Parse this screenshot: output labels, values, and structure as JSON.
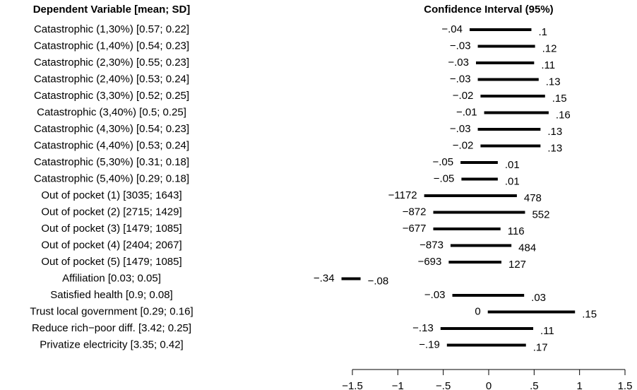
{
  "chart_data": {
    "type": "forest",
    "title": "Confidence Interval (95%)",
    "label_header": "Dependent Variable [mean; SD]",
    "categories": [
      "Catastrophic (1,30%)  [0.57; 0.22]",
      "Catastrophic (1,40%)  [0.54; 0.23]",
      "Catastrophic (2,30%)  [0.55; 0.23]",
      "Catastrophic (2,40%)  [0.53; 0.24]",
      "Catastrophic (3,30%)  [0.52; 0.25]",
      "Catastrophic (3,40%)  [0.5; 0.25]",
      "Catastrophic (4,30%)  [0.54; 0.23]",
      "Catastrophic (4,40%)  [0.53; 0.24]",
      "Catastrophic (5,30%)  [0.31; 0.18]",
      "Catastrophic (5,40%)  [0.29; 0.18]",
      "Out of pocket (1)  [3035; 1643]",
      "Out of pocket (2)  [2715; 1429]",
      "Out of pocket (3)  [1479; 1085]",
      "Out of pocket (4)  [2404; 2067]",
      "Out of pocket (5)  [1479; 1085]",
      "Affiliation  [0.03; 0.05]",
      "Satisfied health  [0.9; 0.08]",
      "Trust local government  [0.29; 0.16]",
      "Reduce rich−poor diff.  [3.42; 0.25]",
      "Privatize electricity  [3.35; 0.42]"
    ],
    "lower": [
      -0.21,
      -0.12,
      -0.14,
      -0.12,
      -0.09,
      -0.05,
      -0.12,
      -0.09,
      -0.31,
      -0.3,
      -0.71,
      -0.61,
      -0.61,
      -0.42,
      -0.44,
      -1.62,
      -0.4,
      -0.01,
      -0.53,
      -0.46
    ],
    "upper": [
      0.47,
      0.51,
      0.5,
      0.55,
      0.62,
      0.66,
      0.57,
      0.57,
      0.1,
      0.1,
      0.31,
      0.4,
      0.13,
      0.25,
      0.14,
      -1.41,
      0.39,
      0.95,
      0.49,
      0.41
    ],
    "lower_labels": [
      "−.04",
      "−.03",
      "−.03",
      "−.03",
      "−.02",
      "−.01",
      "−.03",
      "−.02",
      "−.05",
      "−.05",
      "−1172",
      "−872",
      "−677",
      "−873",
      "−693",
      "−.34",
      "−.03",
      "0",
      "−.13",
      "−.19"
    ],
    "upper_labels": [
      ".1",
      ".12",
      ".11",
      ".13",
      ".15",
      ".16",
      ".13",
      ".13",
      ".01",
      ".01",
      "478",
      "552",
      "116",
      "484",
      "127",
      "−.08",
      ".03",
      ".15",
      ".11",
      ".17"
    ],
    "color": "#000000",
    "xlim": [
      -1.5,
      1.5
    ],
    "xticks": [
      {
        "value": -1.5,
        "label": "−1.5"
      },
      {
        "value": -1,
        "label": "−1"
      },
      {
        "value": -0.5,
        "label": "−.5"
      },
      0,
      {
        "value": 0.5,
        "label": ".5"
      },
      1,
      {
        "value": 1.5,
        "label": "1.5"
      }
    ]
  }
}
